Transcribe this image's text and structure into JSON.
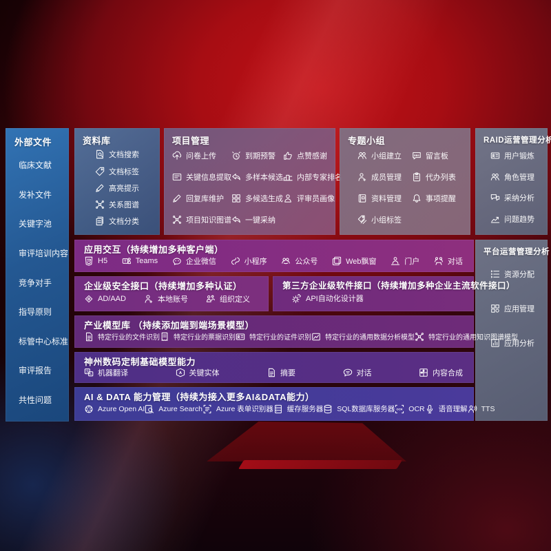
{
  "palette": {
    "bg_red": "#a70d13",
    "sidebar_blue": "#245892",
    "panel_steel_blue": "#46689b",
    "panel_mauve": "#7c5a80",
    "panel_gray": "#6e7488",
    "row_magenta": "#842d82",
    "row_purple": "#6f2b7d",
    "row_violet": "#52308a",
    "row_indigo": "#423a98",
    "text": "#ffffff"
  },
  "sidebar_left": {
    "title": "外部文件",
    "items": [
      "临床文献",
      "发补文件",
      "关键字池",
      "审评培训内容",
      "竞争对手",
      "指导原则",
      "标管中心标准",
      "审评报告",
      "共性问题"
    ]
  },
  "panels": {
    "repository": {
      "title": "资料库",
      "items": [
        {
          "icon": "docSearch",
          "label": "文档搜索"
        },
        {
          "icon": "tag",
          "label": "文档标签"
        },
        {
          "icon": "pencil",
          "label": "高亮提示"
        },
        {
          "icon": "network",
          "label": "关系图谱"
        },
        {
          "icon": "docCopy",
          "label": "文档分类"
        }
      ]
    },
    "project": {
      "title": "项目管理",
      "items": [
        {
          "icon": "cloudUpload",
          "label": "问卷上传"
        },
        {
          "icon": "alarm",
          "label": "到期预警"
        },
        {
          "icon": "thumbUp",
          "label": "点赞感谢"
        },
        {
          "icon": "cardLines",
          "label": "关键信息提取"
        },
        {
          "icon": "replyArrow",
          "label": "多样本候选"
        },
        {
          "icon": "podium",
          "label": "内部专家排名"
        },
        {
          "icon": "pencil",
          "label": "回复库维护"
        },
        {
          "icon": "grid4",
          "label": "多候选生成"
        },
        {
          "icon": "person",
          "label": "评审员画像"
        },
        {
          "icon": "network",
          "label": "项目知识图谱"
        },
        {
          "icon": "replyArrow",
          "label": "一键采纳"
        }
      ]
    },
    "groups": {
      "title": "专题小组",
      "items": [
        {
          "icon": "people",
          "label": "小组建立"
        },
        {
          "icon": "bbs",
          "label": "留言板"
        },
        {
          "icon": "personAdd",
          "label": "成员管理"
        },
        {
          "icon": "clipboard",
          "label": "代办列表"
        },
        {
          "icon": "book",
          "label": "资料管理"
        },
        {
          "icon": "bell",
          "label": "事项提醒"
        },
        {
          "icon": "tags",
          "label": "小组标签"
        }
      ]
    },
    "raid": {
      "title": "RAID运营管理分析",
      "items": [
        {
          "icon": "idCard",
          "label": "用户锻炼"
        },
        {
          "icon": "people",
          "label": "角色管理"
        },
        {
          "icon": "chatQA",
          "label": "采纳分析"
        },
        {
          "icon": "trend",
          "label": "问题趋势"
        }
      ]
    },
    "platform": {
      "title": "平台运营管理分析",
      "items": [
        {
          "icon": "listConfig",
          "label": "资源分配"
        },
        {
          "icon": "appsGrid",
          "label": "应用管理"
        },
        {
          "icon": "chartDoc",
          "label": "应用分析"
        }
      ]
    },
    "interaction": {
      "title": "应用交互（持续增加多种客户端）",
      "items": [
        {
          "icon": "html5",
          "label": "H5"
        },
        {
          "icon": "teams",
          "label": "Teams"
        },
        {
          "icon": "wechat",
          "label": "企业微信"
        },
        {
          "icon": "miniprogram",
          "label": "小程序"
        },
        {
          "icon": "official",
          "label": "公众号"
        },
        {
          "icon": "webWindow",
          "label": "Web飘窗"
        },
        {
          "icon": "portal",
          "label": "门户"
        },
        {
          "icon": "chatPeople",
          "label": "对话"
        }
      ]
    },
    "security": {
      "title": "企业级安全接口（持续增加多种认证）",
      "items": [
        {
          "icon": "adDiamond",
          "label": "AD/AAD"
        },
        {
          "icon": "personAdd",
          "label": "本地账号"
        },
        {
          "icon": "org",
          "label": "组织定义"
        }
      ]
    },
    "thirdparty": {
      "title": "第三方企业级软件接口（持续增加多种企业主流软件接口）",
      "items": [
        {
          "icon": "apiGear",
          "label": "API自动化设计器"
        }
      ]
    },
    "models": {
      "title": "产业模型库 （持续添加端到端场景模型）",
      "items": [
        {
          "icon": "docFile",
          "label": "特定行业的文件识别"
        },
        {
          "icon": "receipt",
          "label": "特定行业的票据识别"
        },
        {
          "icon": "idCard",
          "label": "特定行业的证件识别"
        },
        {
          "icon": "imageChart",
          "label": "特定行业的通用数据分析模型"
        },
        {
          "icon": "network",
          "label": "特定行业的通用知识图谱模型"
        }
      ]
    },
    "basemodels": {
      "title": "神州数码定制基础模型能力",
      "items": [
        {
          "icon": "translate",
          "label": "机器翻译"
        },
        {
          "icon": "keyEntity",
          "label": "关键实体"
        },
        {
          "icon": "docFile",
          "label": "摘要"
        },
        {
          "icon": "chatBubble",
          "label": "对话"
        },
        {
          "icon": "puzzle",
          "label": "内容合成"
        }
      ]
    },
    "aidata": {
      "title": "AI & DATA 能力管理（持续为接入更多AI&DATA能力）",
      "items": [
        {
          "icon": "openai",
          "label": "Azure Open AI"
        },
        {
          "icon": "azureSearch",
          "label": "Azure Search"
        },
        {
          "icon": "form",
          "label": "Azure 表单识别器"
        },
        {
          "icon": "server",
          "label": "缓存服务器"
        },
        {
          "icon": "database",
          "label": "SQL数据库服务器"
        },
        {
          "icon": "ocr",
          "label": "OCR"
        },
        {
          "icon": "speech",
          "label": "语音理解"
        },
        {
          "icon": "tts",
          "label": "TTS"
        }
      ]
    }
  }
}
